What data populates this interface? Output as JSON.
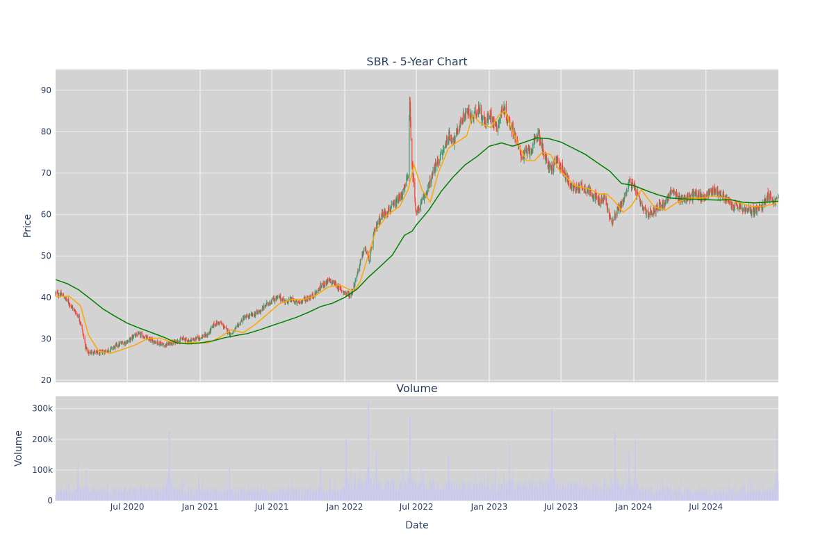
{
  "chart_data": [
    {
      "type": "candlestick",
      "title": "SBR - 5-Year Chart",
      "xlabel": "",
      "ylabel": "Price",
      "xlim": [
        "2020-01-02",
        "2024-12-31"
      ],
      "ylim": [
        19.5,
        95
      ],
      "yticks": [
        20,
        30,
        40,
        50,
        60,
        70,
        80,
        90
      ],
      "grid": true,
      "colors": {
        "increasing": "#3d9970",
        "decreasing": "#ff4136",
        "plot_bg": "#d3d3d3",
        "grid": "#ececec",
        "text": "#2a3f5f"
      },
      "close_series": {
        "x": [
          "2020-01-02",
          "2020-01-20",
          "2020-02-10",
          "2020-02-25",
          "2020-03-05",
          "2020-03-18",
          "2020-03-24",
          "2020-04-05",
          "2020-04-20",
          "2020-05-05",
          "2020-05-20",
          "2020-06-05",
          "2020-06-20",
          "2020-07-05",
          "2020-07-20",
          "2020-08-05",
          "2020-08-20",
          "2020-09-05",
          "2020-09-20",
          "2020-10-05",
          "2020-10-20",
          "2020-11-05",
          "2020-11-20",
          "2020-12-05",
          "2020-12-20",
          "2021-01-05",
          "2021-01-20",
          "2021-02-05",
          "2021-02-20",
          "2021-03-05",
          "2021-03-20",
          "2021-04-05",
          "2021-04-20",
          "2021-05-05",
          "2021-05-20",
          "2021-06-05",
          "2021-06-20",
          "2021-07-05",
          "2021-07-20",
          "2021-08-05",
          "2021-08-20",
          "2021-09-05",
          "2021-09-20",
          "2021-10-05",
          "2021-10-20",
          "2021-11-05",
          "2021-11-20",
          "2021-12-05",
          "2021-12-20",
          "2022-01-05",
          "2022-01-15",
          "2022-01-25",
          "2022-02-05",
          "2022-02-20",
          "2022-03-05",
          "2022-03-15",
          "2022-03-25",
          "2022-04-05",
          "2022-04-20",
          "2022-05-05",
          "2022-05-20",
          "2022-06-01",
          "2022-06-10",
          "2022-06-14",
          "2022-06-20",
          "2022-07-01",
          "2022-07-10",
          "2022-07-20",
          "2022-08-05",
          "2022-08-20",
          "2022-09-05",
          "2022-09-20",
          "2022-10-05",
          "2022-10-20",
          "2022-11-05",
          "2022-11-20",
          "2022-12-05",
          "2022-12-20",
          "2023-01-05",
          "2023-01-20",
          "2023-02-05",
          "2023-02-20",
          "2023-03-05",
          "2023-03-15",
          "2023-03-25",
          "2023-04-05",
          "2023-04-20",
          "2023-05-05",
          "2023-05-20",
          "2023-06-05",
          "2023-06-20",
          "2023-07-05",
          "2023-07-20",
          "2023-08-05",
          "2023-08-20",
          "2023-09-05",
          "2023-09-20",
          "2023-10-05",
          "2023-10-20",
          "2023-11-05",
          "2023-11-20",
          "2023-12-05",
          "2023-12-20",
          "2024-01-05",
          "2024-01-20",
          "2024-02-05",
          "2024-02-20",
          "2024-03-05",
          "2024-03-20",
          "2024-04-05",
          "2024-04-20",
          "2024-05-05",
          "2024-05-20",
          "2024-06-05",
          "2024-06-20",
          "2024-07-05",
          "2024-07-20",
          "2024-08-05",
          "2024-08-20",
          "2024-09-05",
          "2024-09-20",
          "2024-10-05",
          "2024-10-20",
          "2024-11-05",
          "2024-11-20",
          "2024-12-05",
          "2024-12-20",
          "2024-12-31"
        ],
        "y": [
          41,
          40.5,
          38,
          36,
          34,
          28,
          26.5,
          27,
          26.5,
          27,
          27.5,
          28.5,
          29,
          29.5,
          31,
          31,
          30,
          29.5,
          29,
          28.5,
          29,
          29.5,
          30,
          29.5,
          30,
          30.5,
          31,
          33.5,
          34,
          32.5,
          31,
          33,
          35,
          35.5,
          36,
          37,
          38.5,
          39.5,
          40,
          39,
          39.5,
          38.5,
          39.5,
          40,
          41,
          43,
          44,
          43.5,
          42,
          41,
          40.5,
          43,
          47,
          52,
          49,
          55,
          58,
          60,
          61,
          62,
          64,
          66,
          70,
          87,
          72,
          60,
          62,
          64,
          68,
          72,
          75,
          79,
          78,
          82,
          85,
          83,
          86,
          82,
          84,
          81,
          86,
          82,
          80,
          76,
          74,
          75,
          76,
          80,
          74,
          71,
          73,
          71,
          68,
          66,
          67,
          66,
          65,
          63,
          64,
          58,
          61,
          63,
          68,
          66,
          62,
          60,
          61,
          62,
          63,
          66,
          64,
          64,
          64,
          65,
          64,
          65,
          66,
          65,
          64,
          62,
          62,
          61,
          61,
          61,
          62,
          65,
          63,
          64
        ]
      },
      "ma_short": {
        "color": "#ffa500",
        "x": [
          "2020-01-02",
          "2020-02-05",
          "2020-03-05",
          "2020-03-25",
          "2020-04-20",
          "2020-05-20",
          "2020-06-20",
          "2020-07-20",
          "2020-08-20",
          "2020-09-20",
          "2020-10-20",
          "2020-11-20",
          "2020-12-20",
          "2021-01-20",
          "2021-02-20",
          "2021-03-20",
          "2021-04-20",
          "2021-05-20",
          "2021-06-20",
          "2021-07-20",
          "2021-08-20",
          "2021-09-20",
          "2021-10-20",
          "2021-11-20",
          "2021-12-20",
          "2022-01-10",
          "2022-01-25",
          "2022-02-10",
          "2022-03-01",
          "2022-03-20",
          "2022-04-20",
          "2022-05-20",
          "2022-06-10",
          "2022-06-25",
          "2022-07-15",
          "2022-08-05",
          "2022-08-25",
          "2022-09-20",
          "2022-10-20",
          "2022-11-05",
          "2022-11-20",
          "2022-12-10",
          "2023-01-05",
          "2023-01-25",
          "2023-02-10",
          "2023-03-01",
          "2023-03-20",
          "2023-04-05",
          "2023-04-25",
          "2023-05-15",
          "2023-06-05",
          "2023-06-25",
          "2023-07-15",
          "2023-08-05",
          "2023-08-25",
          "2023-09-15",
          "2023-10-05",
          "2023-10-25",
          "2023-11-15",
          "2023-12-05",
          "2023-12-25",
          "2024-01-20",
          "2024-02-20",
          "2024-03-20",
          "2024-04-20",
          "2024-05-20",
          "2024-06-20",
          "2024-07-20",
          "2024-08-20",
          "2024-09-20",
          "2024-10-20",
          "2024-11-20",
          "2024-12-20",
          "2024-12-31"
        ],
        "y": [
          40.2,
          40.3,
          38,
          31,
          27,
          26.5,
          27.5,
          28.5,
          30,
          30.2,
          29.3,
          29,
          29.2,
          29,
          30.4,
          32.2,
          31.5,
          33.5,
          36,
          38.5,
          39.5,
          39.5,
          40.5,
          42.5,
          43,
          42,
          41.5,
          44,
          50,
          56,
          60,
          62,
          66,
          72,
          66,
          63,
          70,
          76,
          78,
          79,
          84,
          82,
          81,
          84,
          85,
          80,
          76,
          73,
          73,
          75,
          74.5,
          71,
          69,
          67,
          66.5,
          66,
          65,
          65,
          63,
          60.5,
          62,
          66,
          62,
          61,
          63,
          64,
          64,
          64.5,
          64,
          63,
          62,
          62,
          62.5,
          63.5
        ]
      },
      "ma_long": {
        "color": "#008000",
        "x": [
          "2020-01-02",
          "2020-02-01",
          "2020-03-01",
          "2020-04-01",
          "2020-05-01",
          "2020-06-01",
          "2020-07-01",
          "2020-08-01",
          "2020-09-01",
          "2020-10-01",
          "2020-11-01",
          "2020-12-01",
          "2021-01-01",
          "2021-02-01",
          "2021-03-01",
          "2021-04-01",
          "2021-05-01",
          "2021-06-01",
          "2021-07-01",
          "2021-08-01",
          "2021-09-01",
          "2021-10-01",
          "2021-11-01",
          "2021-12-01",
          "2022-01-01",
          "2022-02-01",
          "2022-03-01",
          "2022-04-01",
          "2022-05-01",
          "2022-06-01",
          "2022-06-20",
          "2022-07-01",
          "2022-08-01",
          "2022-09-01",
          "2022-10-01",
          "2022-11-01",
          "2022-12-01",
          "2023-01-01",
          "2023-02-01",
          "2023-03-01",
          "2023-04-01",
          "2023-05-01",
          "2023-06-01",
          "2023-07-01",
          "2023-08-01",
          "2023-09-01",
          "2023-10-01",
          "2023-11-01",
          "2023-12-01",
          "2024-01-01",
          "2024-02-01",
          "2024-03-01",
          "2024-04-01",
          "2024-05-01",
          "2024-06-01",
          "2024-07-01",
          "2024-08-01",
          "2024-09-01",
          "2024-10-01",
          "2024-11-01",
          "2024-12-01",
          "2024-12-31"
        ],
        "y": [
          44.3,
          43.3,
          41.8,
          39.5,
          37.2,
          35.4,
          33.8,
          32.6,
          31.5,
          30.4,
          29.1,
          28.8,
          29,
          29.5,
          30.2,
          30.8,
          31.3,
          32.2,
          33.2,
          34.2,
          35.2,
          36.4,
          37.8,
          38.6,
          40,
          42,
          44.8,
          47.5,
          50.2,
          55,
          56,
          57.5,
          61,
          65.5,
          69,
          72,
          74,
          76.5,
          77.3,
          76.5,
          77.5,
          78.5,
          78.3,
          77.5,
          76,
          74.5,
          72.5,
          70.5,
          67.5,
          67,
          65.8,
          64.8,
          64,
          63.8,
          63.7,
          63.6,
          63.5,
          63.6,
          63,
          62.8,
          63,
          63.2
        ]
      }
    },
    {
      "type": "bar",
      "title": "Volume",
      "xlabel": "Date",
      "ylabel": "Volume",
      "xlim": [
        "2020-01-02",
        "2024-12-31"
      ],
      "ylim": [
        0,
        340000
      ],
      "yticks": [
        0,
        100000,
        200000,
        300000
      ],
      "ytick_labels": [
        "0",
        "100k",
        "200k",
        "300k"
      ],
      "xticks": [
        "2020-07-01",
        "2021-01-01",
        "2021-07-01",
        "2022-01-01",
        "2022-07-01",
        "2023-01-01",
        "2023-07-01",
        "2024-01-01",
        "2024-07-01"
      ],
      "xtick_labels": [
        "Jul 2020",
        "Jan 2021",
        "Jul 2021",
        "Jan 2022",
        "Jul 2022",
        "Jan 2023",
        "Jul 2023",
        "Jan 2024",
        "Jul 2024"
      ],
      "bar_color": "#c8c8f0",
      "spikes": [
        {
          "x": "2020-02-28",
          "value": 120000
        },
        {
          "x": "2020-03-20",
          "value": 100000
        },
        {
          "x": "2020-10-15",
          "value": 225000
        },
        {
          "x": "2020-12-28",
          "value": 85000
        },
        {
          "x": "2021-03-15",
          "value": 105000
        },
        {
          "x": "2021-11-01",
          "value": 110000
        },
        {
          "x": "2022-01-05",
          "value": 200000
        },
        {
          "x": "2022-03-02",
          "value": 320000
        },
        {
          "x": "2022-03-22",
          "value": 160000
        },
        {
          "x": "2022-06-15",
          "value": 275000
        },
        {
          "x": "2022-09-20",
          "value": 150000
        },
        {
          "x": "2023-02-20",
          "value": 190000
        },
        {
          "x": "2023-06-08",
          "value": 300000
        },
        {
          "x": "2023-11-14",
          "value": 225000
        },
        {
          "x": "2023-12-20",
          "value": 160000
        },
        {
          "x": "2024-01-05",
          "value": 200000
        },
        {
          "x": "2024-12-28",
          "value": 240000
        }
      ]
    }
  ]
}
